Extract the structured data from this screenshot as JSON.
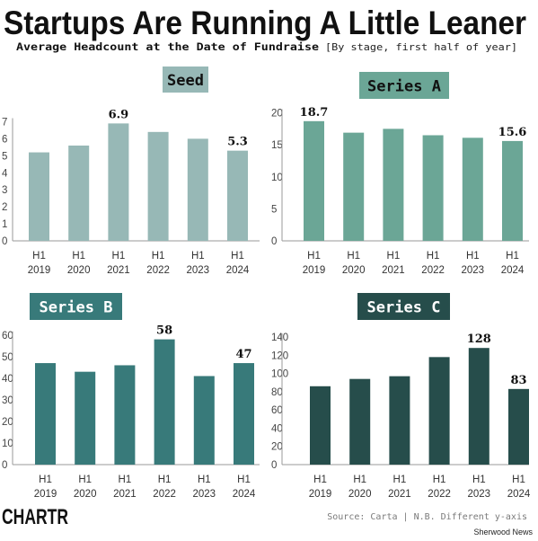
{
  "title": "Startups Are Running A Little Leaner",
  "subtitle_main": "Average Headcount at the Date of Fundraise",
  "subtitle_note": "[By stage, first half of year]",
  "footer": {
    "logo": "CHARTR",
    "source": "Source: Carta | N.B. Different y-axis",
    "credit": "Sherwood News"
  },
  "colors": {
    "seed": "#97b8b6",
    "series_a": "#6ba696",
    "series_b": "#387a7a",
    "series_c": "#264d4b",
    "text": "#111111",
    "axis": "#555555"
  },
  "chart_data": [
    {
      "type": "bar",
      "title": "Seed",
      "categories": [
        "H1 2019",
        "H1 2020",
        "H1 2021",
        "H1 2022",
        "H1 2023",
        "H1 2024"
      ],
      "values": [
        5.2,
        5.6,
        6.9,
        6.4,
        6.0,
        5.3
      ],
      "data_labels": [
        "",
        "",
        "6.9",
        "",
        "",
        "5.3"
      ],
      "yticks": [
        0,
        1,
        2,
        3,
        4,
        5,
        6,
        7
      ],
      "ylim": [
        0,
        7.5
      ],
      "xlabel": "",
      "ylabel": "",
      "grid": false
    },
    {
      "type": "bar",
      "title": "Series A",
      "categories": [
        "H1 2019",
        "H1 2020",
        "H1 2021",
        "H1 2022",
        "H1 2023",
        "H1 2024"
      ],
      "values": [
        18.7,
        16.9,
        17.5,
        16.5,
        16.1,
        15.6
      ],
      "data_labels": [
        "18.7",
        "",
        "",
        "",
        "",
        "15.6"
      ],
      "yticks": [
        0,
        5,
        10,
        15,
        20
      ],
      "ylim": [
        0,
        20.5
      ],
      "xlabel": "",
      "ylabel": "",
      "grid": false
    },
    {
      "type": "bar",
      "title": "Series B",
      "categories": [
        "H1 2019",
        "H1 2020",
        "H1 2021",
        "H1 2022",
        "H1 2023",
        "H1 2024"
      ],
      "values": [
        47,
        43,
        46,
        58,
        41,
        47
      ],
      "data_labels": [
        "",
        "",
        "",
        "58",
        "",
        "47"
      ],
      "yticks": [
        0,
        10,
        20,
        30,
        40,
        50,
        60
      ],
      "ylim": [
        0,
        62
      ],
      "xlabel": "",
      "ylabel": "",
      "grid": false
    },
    {
      "type": "bar",
      "title": "Series C",
      "categories": [
        "H1 2019",
        "H1 2020",
        "H1 2021",
        "H1 2022",
        "H1 2023",
        "H1 2024"
      ],
      "values": [
        86,
        94,
        97,
        118,
        128,
        83
      ],
      "data_labels": [
        "",
        "",
        "",
        "",
        "128",
        "83"
      ],
      "yticks": [
        0,
        20,
        40,
        60,
        80,
        100,
        120,
        140
      ],
      "ylim": [
        0,
        142
      ],
      "xlabel": "",
      "ylabel": "",
      "grid": false
    }
  ]
}
